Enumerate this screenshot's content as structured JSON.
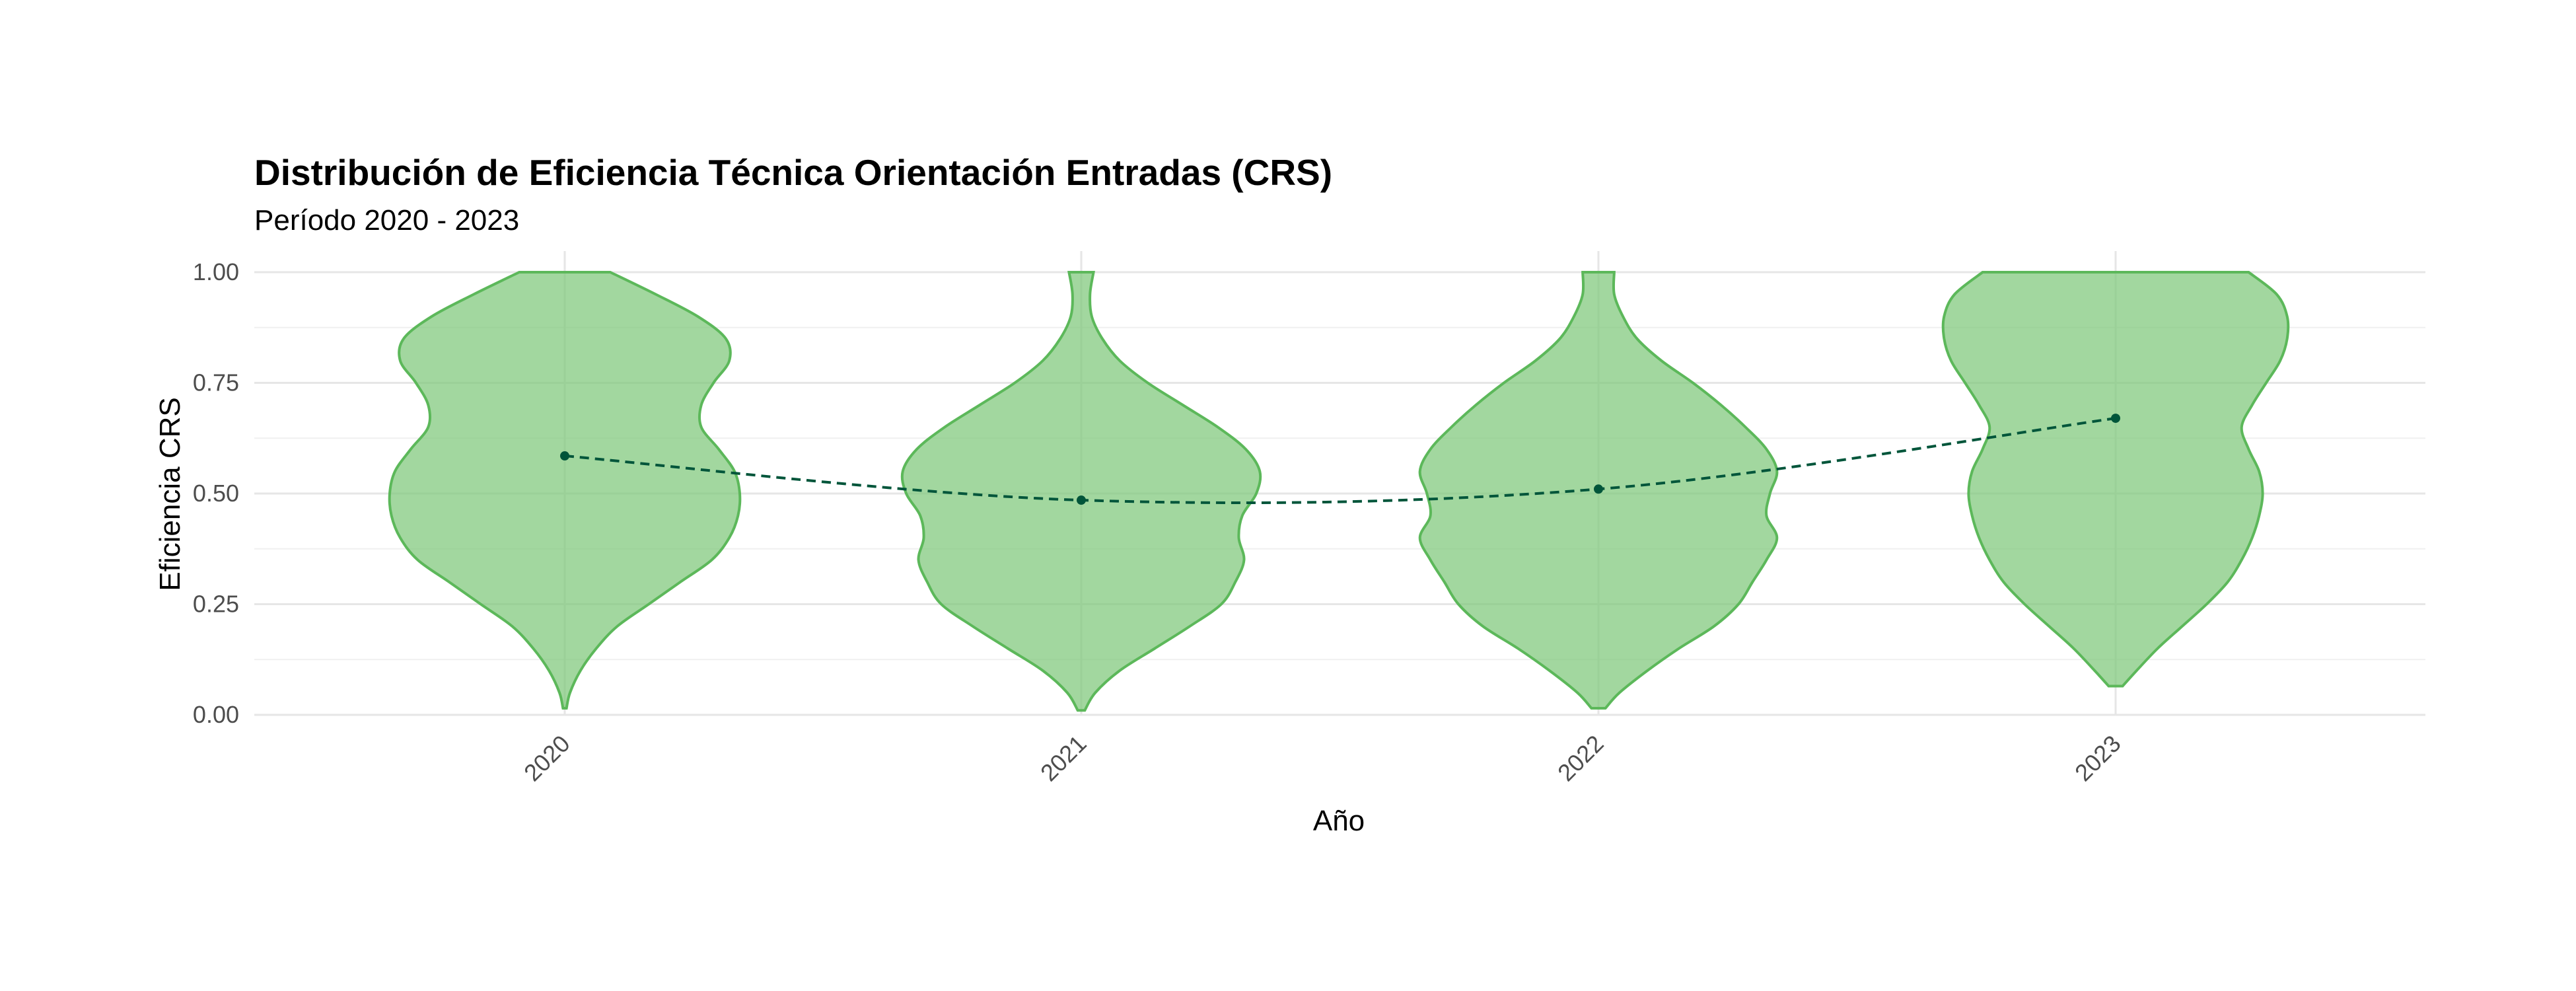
{
  "chart_data": {
    "type": "violin",
    "title": "Distribución de Eficiencia Técnica Orientación Entradas (CRS)",
    "subtitle": "Período 2020 - 2023",
    "xlabel": "Año",
    "ylabel": "Eficiencia CRS",
    "categories": [
      "2020",
      "2021",
      "2022",
      "2023"
    ],
    "ylim": [
      0,
      1
    ],
    "yticks": [
      "0.00",
      "0.25",
      "0.50",
      "0.75",
      "1.00"
    ],
    "grid": true,
    "legend": "none",
    "colors": {
      "violin_fill": "#7ec87a",
      "violin_fill_opacity": 0.72,
      "violin_stroke": "#5cb85a",
      "mean_line": "#00553a"
    },
    "means": [
      0.585,
      0.485,
      0.51,
      0.67
    ],
    "violins": [
      {
        "category": "2020",
        "profile": [
          [
            0.015,
            0.005
          ],
          [
            0.05,
            0.015
          ],
          [
            0.1,
            0.045
          ],
          [
            0.15,
            0.09
          ],
          [
            0.2,
            0.15
          ],
          [
            0.25,
            0.24
          ],
          [
            0.3,
            0.33
          ],
          [
            0.35,
            0.42
          ],
          [
            0.4,
            0.47
          ],
          [
            0.45,
            0.495
          ],
          [
            0.5,
            0.5
          ],
          [
            0.55,
            0.485
          ],
          [
            0.6,
            0.44
          ],
          [
            0.65,
            0.39
          ],
          [
            0.7,
            0.39
          ],
          [
            0.75,
            0.425
          ],
          [
            0.8,
            0.47
          ],
          [
            0.85,
            0.46
          ],
          [
            0.9,
            0.38
          ],
          [
            0.95,
            0.26
          ],
          [
            1.0,
            0.13
          ]
        ]
      },
      {
        "category": "2021",
        "profile": [
          [
            0.01,
            0.01
          ],
          [
            0.05,
            0.04
          ],
          [
            0.1,
            0.11
          ],
          [
            0.15,
            0.21
          ],
          [
            0.2,
            0.31
          ],
          [
            0.25,
            0.4
          ],
          [
            0.3,
            0.44
          ],
          [
            0.35,
            0.465
          ],
          [
            0.4,
            0.45
          ],
          [
            0.45,
            0.46
          ],
          [
            0.5,
            0.5
          ],
          [
            0.55,
            0.51
          ],
          [
            0.6,
            0.47
          ],
          [
            0.65,
            0.39
          ],
          [
            0.7,
            0.29
          ],
          [
            0.75,
            0.19
          ],
          [
            0.8,
            0.11
          ],
          [
            0.85,
            0.06
          ],
          [
            0.9,
            0.03
          ],
          [
            0.95,
            0.025
          ],
          [
            1.0,
            0.035
          ]
        ]
      },
      {
        "category": "2022",
        "profile": [
          [
            0.015,
            0.02
          ],
          [
            0.05,
            0.06
          ],
          [
            0.1,
            0.14
          ],
          [
            0.15,
            0.23
          ],
          [
            0.2,
            0.33
          ],
          [
            0.25,
            0.4
          ],
          [
            0.3,
            0.44
          ],
          [
            0.35,
            0.48
          ],
          [
            0.4,
            0.51
          ],
          [
            0.45,
            0.48
          ],
          [
            0.5,
            0.49
          ],
          [
            0.55,
            0.51
          ],
          [
            0.6,
            0.48
          ],
          [
            0.65,
            0.42
          ],
          [
            0.7,
            0.35
          ],
          [
            0.75,
            0.27
          ],
          [
            0.8,
            0.18
          ],
          [
            0.85,
            0.11
          ],
          [
            0.9,
            0.07
          ],
          [
            0.95,
            0.045
          ],
          [
            1.0,
            0.045
          ]
        ]
      },
      {
        "category": "2023",
        "profile": [
          [
            0.065,
            0.02
          ],
          [
            0.1,
            0.06
          ],
          [
            0.15,
            0.12
          ],
          [
            0.2,
            0.19
          ],
          [
            0.25,
            0.26
          ],
          [
            0.3,
            0.32
          ],
          [
            0.35,
            0.36
          ],
          [
            0.4,
            0.39
          ],
          [
            0.45,
            0.41
          ],
          [
            0.5,
            0.42
          ],
          [
            0.55,
            0.41
          ],
          [
            0.6,
            0.38
          ],
          [
            0.65,
            0.36
          ],
          [
            0.7,
            0.39
          ],
          [
            0.75,
            0.43
          ],
          [
            0.8,
            0.47
          ],
          [
            0.85,
            0.49
          ],
          [
            0.9,
            0.49
          ],
          [
            0.95,
            0.46
          ],
          [
            1.0,
            0.38
          ]
        ]
      }
    ]
  }
}
